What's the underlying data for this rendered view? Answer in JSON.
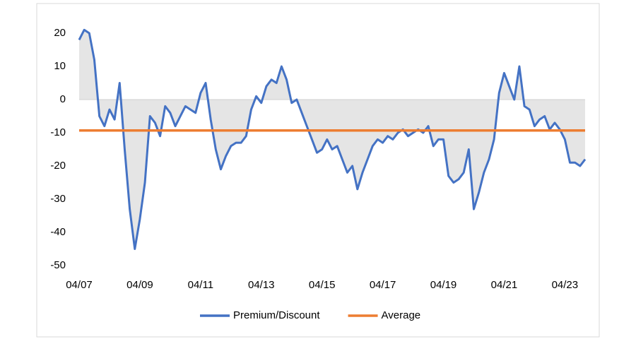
{
  "chart_data": {
    "type": "line",
    "categories": [
      "04/07",
      null,
      null,
      null,
      null,
      null,
      null,
      null,
      null,
      null,
      null,
      null,
      "04/09",
      null,
      null,
      null,
      null,
      null,
      null,
      null,
      null,
      null,
      null,
      null,
      "04/11",
      null,
      null,
      null,
      null,
      null,
      null,
      null,
      null,
      null,
      null,
      null,
      "04/13",
      null,
      null,
      null,
      null,
      null,
      null,
      null,
      null,
      null,
      null,
      null,
      "04/15",
      null,
      null,
      null,
      null,
      null,
      null,
      null,
      null,
      null,
      null,
      null,
      "04/17",
      null,
      null,
      null,
      null,
      null,
      null,
      null,
      null,
      null,
      null,
      null,
      "04/19",
      null,
      null,
      null,
      null,
      null,
      null,
      null,
      null,
      null,
      null,
      null,
      "04/21",
      null,
      null,
      null,
      null,
      null,
      null,
      null,
      null,
      null,
      null,
      null,
      "04/23",
      null,
      null,
      null,
      null
    ],
    "series": [
      {
        "name": "Premium/Discount",
        "color": "#4472c4",
        "area_color": "#dcdcdc",
        "values": [
          18,
          21,
          20,
          12,
          -5,
          -8,
          -3,
          -6,
          5,
          -15,
          -33,
          -45,
          -36,
          -25,
          -5,
          -7,
          -11,
          -2,
          -4,
          -8,
          -5,
          -2,
          -3,
          -4,
          2,
          5,
          -6,
          -15,
          -21,
          -17,
          -14,
          -13,
          -13,
          -11,
          -3,
          1,
          -1,
          4,
          6,
          5,
          10,
          6,
          -1,
          0,
          -4,
          -8,
          -12,
          -16,
          -15,
          -12,
          -15,
          -14,
          -18,
          -22,
          -20,
          -27,
          -22,
          -18,
          -14,
          -12,
          -13,
          -11,
          -12,
          -10,
          -9,
          -11,
          -10,
          -9,
          -10,
          -8,
          -14,
          -12,
          -12,
          -23,
          -25,
          -24,
          -22,
          -15,
          -33,
          -28,
          -22,
          -18,
          -12,
          2,
          8,
          4,
          0,
          10,
          -2,
          -3,
          -8,
          -6,
          -5,
          -9,
          -7,
          -9,
          -12,
          -19,
          -19,
          -20,
          -18
        ]
      },
      {
        "name": "Average",
        "color": "#ed7d31",
        "values": [
          -9.3,
          -9.3,
          -9.3,
          -9.3,
          -9.3,
          -9.3,
          -9.3,
          -9.3,
          -9.3,
          -9.3,
          -9.3,
          -9.3,
          -9.3,
          -9.3,
          -9.3,
          -9.3,
          -9.3,
          -9.3,
          -9.3,
          -9.3,
          -9.3,
          -9.3,
          -9.3,
          -9.3,
          -9.3,
          -9.3,
          -9.3,
          -9.3,
          -9.3,
          -9.3,
          -9.3,
          -9.3,
          -9.3,
          -9.3,
          -9.3,
          -9.3,
          -9.3,
          -9.3,
          -9.3,
          -9.3,
          -9.3,
          -9.3,
          -9.3,
          -9.3,
          -9.3,
          -9.3,
          -9.3,
          -9.3,
          -9.3,
          -9.3,
          -9.3,
          -9.3,
          -9.3,
          -9.3,
          -9.3,
          -9.3,
          -9.3,
          -9.3,
          -9.3,
          -9.3,
          -9.3,
          -9.3,
          -9.3,
          -9.3,
          -9.3,
          -9.3,
          -9.3,
          -9.3,
          -9.3,
          -9.3,
          -9.3,
          -9.3,
          -9.3,
          -9.3,
          -9.3,
          -9.3,
          -9.3,
          -9.3,
          -9.3,
          -9.3,
          -9.3,
          -9.3,
          -9.3,
          -9.3,
          -9.3,
          -9.3,
          -9.3,
          -9.3,
          -9.3,
          -9.3,
          -9.3,
          -9.3,
          -9.3,
          -9.3,
          -9.3,
          -9.3,
          -9.3,
          -9.3,
          -9.3,
          -9.3,
          -9.3
        ]
      }
    ],
    "ylim": [
      -50,
      22
    ],
    "yticks": [
      -50,
      -40,
      -30,
      -20,
      -10,
      0,
      10,
      20
    ],
    "legend": "bottom"
  }
}
